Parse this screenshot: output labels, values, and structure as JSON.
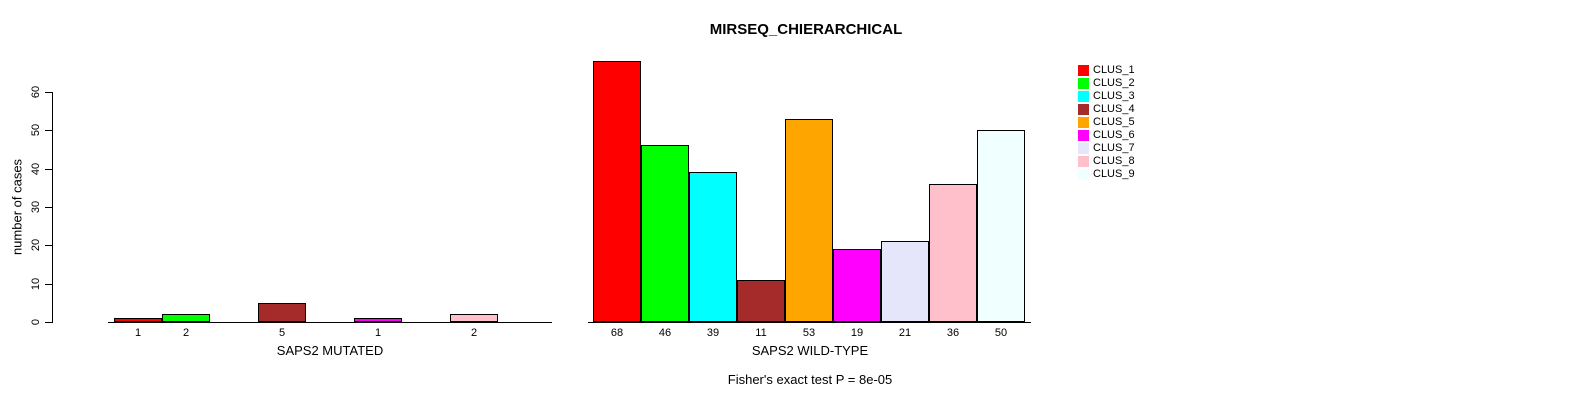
{
  "title": "MIRSEQ_CHIERARCHICAL",
  "chart_data": {
    "type": "bar",
    "title": "MIRSEQ_CHIERARCHICAL",
    "ylabel": "number of cases",
    "ylim": [
      0,
      68
    ],
    "yticks": [
      0,
      10,
      20,
      30,
      40,
      50,
      60
    ],
    "grid": false,
    "legend_position": "top-right",
    "categories": [
      "CLUS_1",
      "CLUS_2",
      "CLUS_3",
      "CLUS_4",
      "CLUS_5",
      "CLUS_6",
      "CLUS_7",
      "CLUS_8",
      "CLUS_9"
    ],
    "cluster_colors": [
      "#FF0000",
      "#00FF00",
      "#00FFFF",
      "#A52A2A",
      "#FFA500",
      "#FF00FF",
      "#E6E6FA",
      "#FFC0CB",
      "#F0FFFF"
    ],
    "panels": [
      {
        "xlabel": "SAPS2 MUTATED",
        "values": [
          1,
          2,
          0,
          5,
          0,
          1,
          0,
          2,
          0
        ],
        "bar_labels": [
          "1",
          "2",
          "",
          "5",
          "",
          "1",
          "",
          "2",
          ""
        ]
      },
      {
        "xlabel": "SAPS2 WILD-TYPE",
        "values": [
          68,
          46,
          39,
          11,
          53,
          19,
          21,
          36,
          50
        ],
        "bar_labels": [
          "68",
          "46",
          "39",
          "11",
          "53",
          "19",
          "21",
          "36",
          "50"
        ]
      }
    ],
    "annotation": "Fisher's exact test P = 8e-05"
  }
}
